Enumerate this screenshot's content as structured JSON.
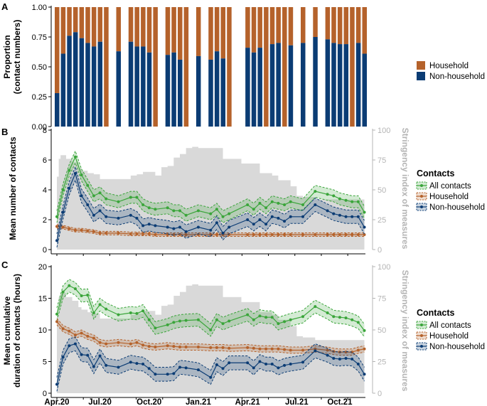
{
  "colors": {
    "household": "#b5622b",
    "non_household": "#0b3c74",
    "all_contacts": "#3aa53a",
    "stringency": "#d9d9d9",
    "stringency_axis": "#b4b4b4",
    "axis": "#000000"
  },
  "chart_data": [
    {
      "panel": "A",
      "type": "bar",
      "stacked": true,
      "ylabel_line1": "Proportion",
      "ylabel_line2": "(contact numbers)",
      "ylim": [
        0,
        1
      ],
      "yticks": [
        0.0,
        0.25,
        0.5,
        0.75,
        1.0
      ],
      "ytick_labels": [
        "0.00",
        "0.25",
        "0.50",
        "0.75",
        "1.00"
      ],
      "legend": [
        "Household",
        "Non-household"
      ],
      "legend_position": "right",
      "x_weeks": [
        0,
        1,
        2,
        3,
        4,
        5,
        6,
        7,
        8,
        10,
        12,
        13,
        14,
        15,
        16,
        18,
        19,
        20,
        21,
        23,
        25,
        26,
        27,
        28,
        31,
        32,
        33,
        34,
        35,
        36,
        37,
        38,
        40,
        42,
        44,
        45,
        46,
        47,
        48,
        49,
        50
      ],
      "non_household": [
        0.28,
        0.61,
        0.76,
        0.79,
        0.74,
        0.7,
        0.67,
        0.71,
        0.0,
        0.63,
        0.71,
        0.67,
        0.67,
        0.62,
        0.0,
        0.6,
        0.62,
        0.56,
        0.0,
        0.59,
        0.56,
        0.63,
        0.57,
        0.0,
        0.66,
        0.62,
        0.66,
        0.0,
        0.69,
        0.7,
        0.0,
        0.68,
        0.7,
        0.75,
        0.73,
        0.7,
        0.69,
        0.69,
        0.0,
        0.7,
        0.61
      ]
    },
    {
      "panel": "B",
      "type": "line",
      "ylabel": "Mean number of contacts",
      "y2label": "Stringency index of measures",
      "ylim": [
        0,
        8
      ],
      "yticks": [
        0,
        2,
        4,
        6,
        8
      ],
      "y2lim": [
        0,
        100
      ],
      "y2ticks": [
        0,
        25,
        50,
        75,
        100
      ],
      "legend_title": "Contacts",
      "legend_position": "right",
      "series": [
        {
          "name": "All contacts",
          "key": "all_contacts",
          "x": [
            0,
            1,
            2,
            3,
            4,
            5,
            6,
            7,
            8,
            10,
            12,
            13,
            14,
            15,
            16,
            18,
            19,
            20,
            21,
            23,
            25,
            26,
            27,
            28,
            31,
            32,
            33,
            34,
            35,
            36,
            37,
            38,
            40,
            42,
            44,
            45,
            46,
            47,
            48,
            49,
            50
          ],
          "values": [
            2.2,
            4.0,
            5.3,
            6.2,
            5.0,
            4.3,
            3.6,
            3.8,
            3.4,
            3.2,
            3.5,
            3.5,
            3.0,
            2.8,
            2.7,
            2.8,
            2.6,
            2.6,
            2.3,
            2.6,
            2.4,
            2.7,
            2.2,
            2.4,
            3.0,
            2.7,
            3.1,
            2.8,
            3.2,
            3.1,
            3.0,
            3.2,
            3.0,
            3.9,
            3.7,
            3.6,
            3.4,
            3.3,
            3.2,
            3.2,
            2.5
          ],
          "ci": 0.4
        },
        {
          "name": "Household",
          "key": "household",
          "x": [
            0,
            1,
            2,
            3,
            4,
            5,
            6,
            7,
            8,
            10,
            12,
            13,
            14,
            15,
            16,
            18,
            19,
            20,
            21,
            23,
            25,
            26,
            27,
            28,
            31,
            32,
            33,
            34,
            35,
            36,
            37,
            38,
            40,
            42,
            44,
            45,
            46,
            47,
            48,
            49,
            50
          ],
          "values": [
            1.55,
            1.5,
            1.4,
            1.3,
            1.3,
            1.25,
            1.2,
            1.1,
            1.1,
            1.1,
            1.05,
            1.05,
            1.05,
            1.05,
            1.0,
            1.0,
            1.0,
            1.0,
            1.0,
            1.0,
            1.0,
            1.0,
            1.0,
            1.0,
            1.0,
            1.0,
            1.0,
            1.0,
            1.0,
            1.0,
            1.0,
            1.0,
            1.0,
            1.0,
            1.0,
            1.0,
            1.0,
            1.0,
            1.0,
            1.0,
            1.0
          ],
          "ci": 0.12
        },
        {
          "name": "Non-household",
          "key": "non_household",
          "x": [
            0,
            1,
            2,
            3,
            4,
            5,
            6,
            7,
            8,
            10,
            12,
            13,
            14,
            15,
            16,
            18,
            19,
            20,
            21,
            23,
            25,
            26,
            27,
            28,
            31,
            32,
            33,
            34,
            35,
            36,
            37,
            38,
            40,
            42,
            44,
            45,
            46,
            47,
            48,
            49,
            50
          ],
          "values": [
            0.6,
            2.5,
            4.1,
            5.1,
            3.6,
            3.0,
            2.3,
            2.6,
            2.2,
            2.1,
            2.3,
            2.1,
            1.6,
            1.7,
            1.6,
            1.5,
            1.4,
            1.5,
            1.2,
            1.5,
            1.3,
            1.8,
            1.1,
            1.5,
            2.0,
            1.7,
            2.0,
            1.7,
            2.2,
            2.1,
            1.9,
            2.2,
            2.2,
            3.0,
            2.6,
            2.4,
            2.3,
            2.2,
            2.2,
            2.2,
            1.5
          ],
          "ci": 0.45
        }
      ],
      "stringency": [
        [
          0,
          61
        ],
        [
          0.3,
          76
        ],
        [
          0.6,
          79
        ],
        [
          1,
          79
        ],
        [
          1.5,
          76
        ],
        [
          2.5,
          73
        ],
        [
          3,
          73
        ],
        [
          3.5,
          68
        ],
        [
          4,
          66
        ],
        [
          5,
          64
        ],
        [
          6,
          63
        ],
        [
          7,
          59
        ],
        [
          9,
          59
        ],
        [
          10,
          59
        ],
        [
          11,
          59
        ],
        [
          12,
          62
        ],
        [
          13,
          63
        ],
        [
          14,
          65
        ],
        [
          15,
          65
        ],
        [
          16,
          62
        ],
        [
          17,
          69
        ],
        [
          18,
          70
        ],
        [
          19,
          77
        ],
        [
          20,
          80
        ],
        [
          21,
          85
        ],
        [
          22,
          86
        ],
        [
          23,
          85
        ],
        [
          26,
          85
        ],
        [
          27,
          76
        ],
        [
          30,
          72
        ],
        [
          33,
          64
        ],
        [
          35,
          62
        ],
        [
          36,
          58
        ],
        [
          38,
          53
        ],
        [
          39,
          45
        ],
        [
          40,
          44
        ],
        [
          42,
          42
        ],
        [
          45,
          42
        ],
        [
          47,
          42
        ],
        [
          48,
          42
        ],
        [
          50,
          42
        ]
      ]
    },
    {
      "panel": "C",
      "type": "line",
      "ylabel_line1": "Mean cumulative",
      "ylabel_line2": "duration of contacts (hours)",
      "y2label": "Stringency index of measures",
      "ylim": [
        0,
        20
      ],
      "yticks": [
        0,
        5,
        10,
        15,
        20
      ],
      "y2lim": [
        0,
        100
      ],
      "y2ticks": [
        0,
        25,
        50,
        75,
        100
      ],
      "xtick_labels": [
        "Apr.20",
        "Jul.20",
        "Oct.20",
        "Jan.21",
        "Apr.21",
        "Jul.21",
        "Oct.21"
      ],
      "xtick_weeks": [
        0,
        7,
        15,
        23,
        31,
        39,
        46
      ],
      "legend_title": "Contacts",
      "legend_position": "right",
      "series": [
        {
          "name": "All contacts",
          "key": "all_contacts",
          "x": [
            0,
            1,
            2,
            3,
            4,
            5,
            6,
            7,
            8,
            10,
            12,
            13,
            14,
            15,
            16,
            18,
            19,
            20,
            21,
            23,
            25,
            26,
            27,
            28,
            31,
            32,
            33,
            34,
            35,
            36,
            37,
            38,
            40,
            42,
            44,
            45,
            46,
            47,
            48,
            49,
            50
          ],
          "values": [
            12.5,
            16.0,
            17.0,
            16.5,
            15.4,
            15.5,
            12.7,
            14.0,
            13.3,
            12.4,
            12.7,
            12.6,
            13.0,
            11.6,
            10.3,
            10.8,
            11.2,
            11.4,
            11.5,
            11.6,
            10.0,
            11.6,
            11.0,
            11.4,
            12.4,
            11.6,
            12.2,
            12.0,
            12.0,
            11.0,
            11.3,
            11.6,
            12.1,
            13.7,
            12.7,
            12.1,
            12.0,
            11.9,
            11.6,
            11.2,
            9.9
          ],
          "ci": 1.0
        },
        {
          "name": "Household",
          "key": "household",
          "x": [
            0,
            1,
            2,
            3,
            4,
            5,
            6,
            7,
            8,
            10,
            12,
            13,
            14,
            15,
            16,
            18,
            19,
            20,
            21,
            23,
            25,
            26,
            27,
            28,
            31,
            32,
            33,
            34,
            35,
            36,
            37,
            38,
            40,
            42,
            44,
            45,
            46,
            47,
            48,
            49,
            50
          ],
          "values": [
            11.3,
            10.2,
            9.8,
            9.2,
            9.5,
            9.0,
            8.7,
            8.0,
            7.8,
            8.0,
            7.8,
            8.0,
            7.6,
            7.4,
            7.3,
            7.5,
            7.4,
            7.3,
            7.3,
            7.3,
            7.2,
            7.2,
            7.2,
            7.1,
            7.2,
            7.1,
            7.0,
            7.0,
            7.0,
            7.0,
            6.9,
            6.8,
            6.8,
            7.0,
            6.8,
            6.6,
            6.5,
            6.5,
            6.5,
            6.8,
            7.0
          ],
          "ci": 0.5
        },
        {
          "name": "Non-household",
          "key": "non_household",
          "x": [
            0,
            1,
            2,
            3,
            4,
            5,
            6,
            7,
            8,
            10,
            12,
            13,
            14,
            15,
            16,
            18,
            19,
            20,
            21,
            23,
            25,
            26,
            27,
            28,
            31,
            32,
            33,
            34,
            35,
            36,
            37,
            38,
            40,
            42,
            44,
            45,
            46,
            47,
            48,
            49,
            50
          ],
          "values": [
            1.4,
            5.7,
            7.5,
            7.8,
            6.1,
            6.0,
            4.2,
            5.9,
            4.4,
            4.1,
            4.9,
            4.7,
            4.6,
            3.9,
            3.0,
            3.0,
            3.1,
            4.1,
            4.0,
            3.7,
            2.5,
            4.5,
            3.9,
            4.8,
            4.8,
            4.0,
            5.0,
            4.6,
            4.6,
            4.0,
            4.4,
            4.6,
            4.9,
            6.7,
            6.0,
            5.5,
            5.4,
            5.5,
            5.4,
            4.6,
            3.0
          ],
          "ci": 1.1
        }
      ],
      "stringency": [
        [
          0,
          61
        ],
        [
          0.3,
          76
        ],
        [
          0.6,
          79
        ],
        [
          1,
          79
        ],
        [
          1.5,
          76
        ],
        [
          2.5,
          73
        ],
        [
          3,
          73
        ],
        [
          3.5,
          68
        ],
        [
          4,
          66
        ],
        [
          5,
          64
        ],
        [
          6,
          63
        ],
        [
          7,
          59
        ],
        [
          9,
          59
        ],
        [
          10,
          59
        ],
        [
          11,
          59
        ],
        [
          12,
          62
        ],
        [
          13,
          63
        ],
        [
          14,
          65
        ],
        [
          15,
          65
        ],
        [
          16,
          62
        ],
        [
          17,
          69
        ],
        [
          18,
          70
        ],
        [
          19,
          77
        ],
        [
          20,
          80
        ],
        [
          21,
          85
        ],
        [
          22,
          86
        ],
        [
          23,
          85
        ],
        [
          26,
          85
        ],
        [
          27,
          76
        ],
        [
          30,
          72
        ],
        [
          33,
          64
        ],
        [
          35,
          62
        ],
        [
          36,
          58
        ],
        [
          38,
          53
        ],
        [
          39,
          45
        ],
        [
          40,
          44
        ],
        [
          42,
          42
        ],
        [
          45,
          42
        ],
        [
          47,
          42
        ],
        [
          48,
          42
        ],
        [
          50,
          42
        ]
      ]
    }
  ]
}
